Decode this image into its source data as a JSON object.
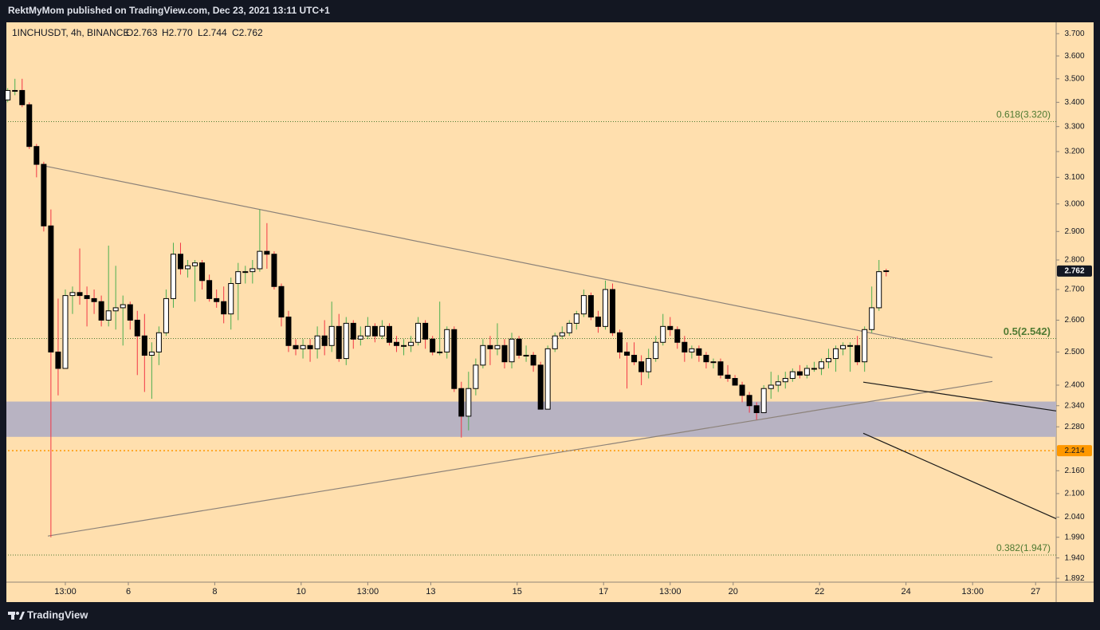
{
  "header": {
    "published": "RektMyMom published on TradingView.com, Dec 23, 2021 13:11 UTC+1",
    "symbol": "1INCHUSDT, 4h, BINANCE",
    "open": "O2.763",
    "high": "H2.770",
    "low": "L2.744",
    "close": "C2.762"
  },
  "footer": {
    "brand": "TradingView"
  },
  "chart_data": {
    "type": "candlestick",
    "log_scale": true,
    "grid": false,
    "up_color": "#ffffff",
    "down_color": "#000000",
    "border_color": "#000000",
    "up_wick": "#4caf50",
    "down_wick": "#f23645",
    "xlim": [
      3.214,
      27.476
    ],
    "ylim": [
      1.883,
      3.752
    ],
    "xticks": [
      {
        "value": 4.542,
        "label": "13:00"
      },
      6,
      8,
      10,
      {
        "value": 11.542,
        "label": "13:00"
      },
      13,
      15,
      17,
      {
        "value": 18.542,
        "label": "13:00"
      },
      20,
      22,
      24,
      {
        "value": 25.542,
        "label": "13:00"
      },
      27
    ],
    "yticks": [
      {
        "value": 3.7,
        "label": "3.700"
      },
      {
        "value": 3.6,
        "label": "3.600"
      },
      {
        "value": 3.5,
        "label": "3.500"
      },
      {
        "value": 3.4,
        "label": "3.400"
      },
      {
        "value": 3.3,
        "label": "3.300"
      },
      {
        "value": 3.2,
        "label": "3.200"
      },
      {
        "value": 3.1,
        "label": "3.100"
      },
      {
        "value": 3.0,
        "label": "3.000"
      },
      {
        "value": 2.9,
        "label": "2.900"
      },
      {
        "value": 2.8,
        "label": "2.800"
      },
      {
        "value": 2.7,
        "label": "2.700"
      },
      {
        "value": 2.6,
        "label": "2.600"
      },
      {
        "value": 2.5,
        "label": "2.500"
      },
      {
        "value": 2.4,
        "label": "2.400"
      },
      {
        "value": 2.34,
        "label": "2.340"
      },
      {
        "value": 2.28,
        "label": "2.280"
      },
      {
        "value": 2.16,
        "label": "2.160"
      },
      {
        "value": 2.1,
        "label": "2.100"
      },
      {
        "value": 2.04,
        "label": "2.040"
      },
      {
        "value": 1.99,
        "label": "1.990"
      },
      {
        "value": 1.94,
        "label": "1.940"
      },
      {
        "value": 1.892,
        "label": "1.892"
      }
    ],
    "level": 2.214,
    "level_color": "#ff9800",
    "fib_color": "#4f7a32",
    "fib_levels": [
      {
        "label": "0.618(3.320)",
        "value": 3.32
      },
      {
        "label": "0.5(2.542)",
        "value": 2.542
      },
      {
        "label": "0.382(1.947)",
        "value": 1.947
      }
    ],
    "zone": {
      "low": 2.252,
      "high": 2.352,
      "color": "#b8b3c2"
    },
    "trendlines": [
      {
        "color": "#8c8279",
        "points": [
          [
            4.081,
            3.143
          ],
          [
            26.0,
            2.483
          ]
        ]
      },
      {
        "color": "#8c8279",
        "points": [
          [
            4.137,
            1.993
          ],
          [
            26.0,
            2.411
          ]
        ]
      },
      {
        "color": "#1a1a1a",
        "points": [
          [
            23.011,
            2.409
          ],
          [
            27.476,
            2.325
          ]
        ]
      },
      {
        "color": "#1a1a1a",
        "points": [
          [
            23.011,
            2.262
          ],
          [
            27.476,
            2.036
          ]
        ]
      }
    ],
    "candles": [
      {
        "x": 3.208,
        "open": 3.41,
        "high": 3.46,
        "low": 3.4,
        "close": 3.45
      },
      {
        "x": 3.375,
        "open": 3.45,
        "high": 3.5,
        "low": 3.43,
        "close": 3.45
      },
      {
        "x": 3.542,
        "open": 3.45,
        "high": 3.5,
        "low": 3.38,
        "close": 3.39
      },
      {
        "x": 3.708,
        "open": 3.39,
        "high": 3.4,
        "low": 3.21,
        "close": 3.22
      },
      {
        "x": 3.875,
        "open": 3.22,
        "high": 3.23,
        "low": 3.1,
        "close": 3.15
      },
      {
        "x": 4.042,
        "open": 3.15,
        "high": 3.16,
        "low": 2.9,
        "close": 2.92
      },
      {
        "x": 4.208,
        "open": 2.92,
        "high": 2.98,
        "low": 1.99,
        "close": 2.5
      },
      {
        "x": 4.375,
        "open": 2.5,
        "high": 2.67,
        "low": 2.37,
        "close": 2.45
      },
      {
        "x": 4.542,
        "open": 2.45,
        "high": 2.7,
        "low": 2.45,
        "close": 2.68
      },
      {
        "x": 4.708,
        "open": 2.68,
        "high": 2.71,
        "low": 2.62,
        "close": 2.69
      },
      {
        "x": 4.875,
        "open": 2.69,
        "high": 2.84,
        "low": 2.65,
        "close": 2.68
      },
      {
        "x": 5.042,
        "open": 2.68,
        "high": 2.71,
        "low": 2.58,
        "close": 2.67
      },
      {
        "x": 5.208,
        "open": 2.67,
        "high": 2.7,
        "low": 2.62,
        "close": 2.66
      },
      {
        "x": 5.375,
        "open": 2.66,
        "high": 2.68,
        "low": 2.58,
        "close": 2.6
      },
      {
        "x": 5.542,
        "open": 2.6,
        "high": 2.85,
        "low": 2.58,
        "close": 2.63
      },
      {
        "x": 5.708,
        "open": 2.63,
        "high": 2.78,
        "low": 2.57,
        "close": 2.64
      },
      {
        "x": 5.875,
        "open": 2.64,
        "high": 2.68,
        "low": 2.52,
        "close": 2.65
      },
      {
        "x": 6.042,
        "open": 2.65,
        "high": 2.66,
        "low": 2.57,
        "close": 2.6
      },
      {
        "x": 6.208,
        "open": 2.6,
        "high": 2.63,
        "low": 2.43,
        "close": 2.55
      },
      {
        "x": 6.375,
        "open": 2.55,
        "high": 2.62,
        "low": 2.38,
        "close": 2.49
      },
      {
        "x": 6.542,
        "open": 2.49,
        "high": 2.53,
        "low": 2.36,
        "close": 2.5
      },
      {
        "x": 6.708,
        "open": 2.5,
        "high": 2.58,
        "low": 2.46,
        "close": 2.56
      },
      {
        "x": 6.875,
        "open": 2.56,
        "high": 2.7,
        "low": 2.55,
        "close": 2.67
      },
      {
        "x": 7.042,
        "open": 2.67,
        "high": 2.86,
        "low": 2.64,
        "close": 2.82
      },
      {
        "x": 7.208,
        "open": 2.82,
        "high": 2.86,
        "low": 2.75,
        "close": 2.77
      },
      {
        "x": 7.375,
        "open": 2.77,
        "high": 2.8,
        "low": 2.74,
        "close": 2.78
      },
      {
        "x": 7.542,
        "open": 2.78,
        "high": 2.8,
        "low": 2.66,
        "close": 2.79
      },
      {
        "x": 7.708,
        "open": 2.79,
        "high": 2.8,
        "low": 2.7,
        "close": 2.73
      },
      {
        "x": 7.875,
        "open": 2.73,
        "high": 2.75,
        "low": 2.66,
        "close": 2.67
      },
      {
        "x": 8.042,
        "open": 2.67,
        "high": 2.7,
        "low": 2.64,
        "close": 2.66
      },
      {
        "x": 8.208,
        "open": 2.66,
        "high": 2.71,
        "low": 2.59,
        "close": 2.62
      },
      {
        "x": 8.375,
        "open": 2.62,
        "high": 2.74,
        "low": 2.57,
        "close": 2.72
      },
      {
        "x": 8.542,
        "open": 2.72,
        "high": 2.79,
        "low": 2.6,
        "close": 2.76
      },
      {
        "x": 8.708,
        "open": 2.76,
        "high": 2.78,
        "low": 2.72,
        "close": 2.76
      },
      {
        "x": 8.875,
        "open": 2.76,
        "high": 2.8,
        "low": 2.72,
        "close": 2.77
      },
      {
        "x": 9.042,
        "open": 2.77,
        "high": 2.98,
        "low": 2.76,
        "close": 2.83
      },
      {
        "x": 9.208,
        "open": 2.83,
        "high": 2.93,
        "low": 2.77,
        "close": 2.82
      },
      {
        "x": 9.375,
        "open": 2.82,
        "high": 2.83,
        "low": 2.7,
        "close": 2.71
      },
      {
        "x": 9.542,
        "open": 2.71,
        "high": 2.72,
        "low": 2.58,
        "close": 2.61
      },
      {
        "x": 9.708,
        "open": 2.61,
        "high": 2.63,
        "low": 2.5,
        "close": 2.52
      },
      {
        "x": 9.875,
        "open": 2.52,
        "high": 2.54,
        "low": 2.49,
        "close": 2.51
      },
      {
        "x": 10.042,
        "open": 2.51,
        "high": 2.54,
        "low": 2.48,
        "close": 2.52
      },
      {
        "x": 10.208,
        "open": 2.52,
        "high": 2.54,
        "low": 2.47,
        "close": 2.51
      },
      {
        "x": 10.375,
        "open": 2.51,
        "high": 2.58,
        "low": 2.48,
        "close": 2.55
      },
      {
        "x": 10.542,
        "open": 2.55,
        "high": 2.6,
        "low": 2.49,
        "close": 2.52
      },
      {
        "x": 10.708,
        "open": 2.52,
        "high": 2.66,
        "low": 2.5,
        "close": 2.58
      },
      {
        "x": 10.875,
        "open": 2.58,
        "high": 2.62,
        "low": 2.47,
        "close": 2.48
      },
      {
        "x": 11.042,
        "open": 2.48,
        "high": 2.61,
        "low": 2.46,
        "close": 2.59
      },
      {
        "x": 11.208,
        "open": 2.59,
        "high": 2.6,
        "low": 2.51,
        "close": 2.54
      },
      {
        "x": 11.375,
        "open": 2.54,
        "high": 2.58,
        "low": 2.52,
        "close": 2.55
      },
      {
        "x": 11.542,
        "open": 2.55,
        "high": 2.61,
        "low": 2.54,
        "close": 2.58
      },
      {
        "x": 11.708,
        "open": 2.58,
        "high": 2.59,
        "low": 2.53,
        "close": 2.55
      },
      {
        "x": 11.875,
        "open": 2.55,
        "high": 2.6,
        "low": 2.54,
        "close": 2.58
      },
      {
        "x": 12.042,
        "open": 2.58,
        "high": 2.59,
        "low": 2.52,
        "close": 2.53
      },
      {
        "x": 12.208,
        "open": 2.53,
        "high": 2.55,
        "low": 2.5,
        "close": 2.52
      },
      {
        "x": 12.375,
        "open": 2.52,
        "high": 2.54,
        "low": 2.49,
        "close": 2.52
      },
      {
        "x": 12.542,
        "open": 2.52,
        "high": 2.55,
        "low": 2.5,
        "close": 2.53
      },
      {
        "x": 12.708,
        "open": 2.53,
        "high": 2.61,
        "low": 2.52,
        "close": 2.59
      },
      {
        "x": 12.875,
        "open": 2.59,
        "high": 2.6,
        "low": 2.51,
        "close": 2.54
      },
      {
        "x": 13.042,
        "open": 2.54,
        "high": 2.55,
        "low": 2.49,
        "close": 2.5
      },
      {
        "x": 13.208,
        "open": 2.5,
        "high": 2.66,
        "low": 2.49,
        "close": 2.5
      },
      {
        "x": 13.375,
        "open": 2.5,
        "high": 2.58,
        "low": 2.48,
        "close": 2.57
      },
      {
        "x": 13.542,
        "open": 2.57,
        "high": 2.58,
        "low": 2.38,
        "close": 2.39
      },
      {
        "x": 13.708,
        "open": 2.39,
        "high": 2.41,
        "low": 2.25,
        "close": 2.31
      },
      {
        "x": 13.875,
        "open": 2.31,
        "high": 2.44,
        "low": 2.27,
        "close": 2.39
      },
      {
        "x": 14.042,
        "open": 2.39,
        "high": 2.48,
        "low": 2.37,
        "close": 2.46
      },
      {
        "x": 14.208,
        "open": 2.46,
        "high": 2.54,
        "low": 2.45,
        "close": 2.52
      },
      {
        "x": 14.375,
        "open": 2.52,
        "high": 2.55,
        "low": 2.46,
        "close": 2.51
      },
      {
        "x": 14.542,
        "open": 2.51,
        "high": 2.59,
        "low": 2.49,
        "close": 2.52
      },
      {
        "x": 14.708,
        "open": 2.52,
        "high": 2.54,
        "low": 2.45,
        "close": 2.47
      },
      {
        "x": 14.875,
        "open": 2.47,
        "high": 2.56,
        "low": 2.45,
        "close": 2.54
      },
      {
        "x": 15.042,
        "open": 2.54,
        "high": 2.55,
        "low": 2.48,
        "close": 2.49
      },
      {
        "x": 15.208,
        "open": 2.49,
        "high": 2.52,
        "low": 2.47,
        "close": 2.49
      },
      {
        "x": 15.375,
        "open": 2.49,
        "high": 2.5,
        "low": 2.44,
        "close": 2.46
      },
      {
        "x": 15.542,
        "open": 2.46,
        "high": 2.47,
        "low": 2.33,
        "close": 2.33
      },
      {
        "x": 15.708,
        "open": 2.33,
        "high": 2.52,
        "low": 2.33,
        "close": 2.51
      },
      {
        "x": 15.875,
        "open": 2.51,
        "high": 2.56,
        "low": 2.5,
        "close": 2.55
      },
      {
        "x": 16.042,
        "open": 2.55,
        "high": 2.58,
        "low": 2.54,
        "close": 2.56
      },
      {
        "x": 16.208,
        "open": 2.56,
        "high": 2.6,
        "low": 2.55,
        "close": 2.59
      },
      {
        "x": 16.375,
        "open": 2.59,
        "high": 2.63,
        "low": 2.57,
        "close": 2.62
      },
      {
        "x": 16.542,
        "open": 2.62,
        "high": 2.7,
        "low": 2.61,
        "close": 2.68
      },
      {
        "x": 16.708,
        "open": 2.68,
        "high": 2.69,
        "low": 2.6,
        "close": 2.61
      },
      {
        "x": 16.875,
        "open": 2.61,
        "high": 2.63,
        "low": 2.56,
        "close": 2.58
      },
      {
        "x": 17.042,
        "open": 2.58,
        "high": 2.73,
        "low": 2.57,
        "close": 2.7
      },
      {
        "x": 17.208,
        "open": 2.7,
        "high": 2.72,
        "low": 2.55,
        "close": 2.56
      },
      {
        "x": 17.375,
        "open": 2.56,
        "high": 2.57,
        "low": 2.48,
        "close": 2.5
      },
      {
        "x": 17.542,
        "open": 2.5,
        "high": 2.53,
        "low": 2.39,
        "close": 2.49
      },
      {
        "x": 17.708,
        "open": 2.49,
        "high": 2.53,
        "low": 2.46,
        "close": 2.47
      },
      {
        "x": 17.875,
        "open": 2.47,
        "high": 2.49,
        "low": 2.4,
        "close": 2.44
      },
      {
        "x": 18.042,
        "open": 2.44,
        "high": 2.51,
        "low": 2.42,
        "close": 2.48
      },
      {
        "x": 18.208,
        "open": 2.48,
        "high": 2.55,
        "low": 2.47,
        "close": 2.53
      },
      {
        "x": 18.375,
        "open": 2.53,
        "high": 2.62,
        "low": 2.52,
        "close": 2.58
      },
      {
        "x": 18.542,
        "open": 2.58,
        "high": 2.61,
        "low": 2.55,
        "close": 2.57
      },
      {
        "x": 18.708,
        "open": 2.57,
        "high": 2.58,
        "low": 2.51,
        "close": 2.53
      },
      {
        "x": 18.875,
        "open": 2.53,
        "high": 2.55,
        "low": 2.47,
        "close": 2.5
      },
      {
        "x": 19.042,
        "open": 2.5,
        "high": 2.52,
        "low": 2.48,
        "close": 2.51
      },
      {
        "x": 19.208,
        "open": 2.51,
        "high": 2.52,
        "low": 2.47,
        "close": 2.49
      },
      {
        "x": 19.375,
        "open": 2.49,
        "high": 2.5,
        "low": 2.45,
        "close": 2.47
      },
      {
        "x": 19.542,
        "open": 2.47,
        "high": 2.48,
        "low": 2.45,
        "close": 2.47
      },
      {
        "x": 19.708,
        "open": 2.47,
        "high": 2.48,
        "low": 2.42,
        "close": 2.43
      },
      {
        "x": 19.875,
        "open": 2.43,
        "high": 2.46,
        "low": 2.41,
        "close": 2.42
      },
      {
        "x": 20.042,
        "open": 2.42,
        "high": 2.43,
        "low": 2.4,
        "close": 2.4
      },
      {
        "x": 20.208,
        "open": 2.4,
        "high": 2.41,
        "low": 2.35,
        "close": 2.37
      },
      {
        "x": 20.375,
        "open": 2.37,
        "high": 2.38,
        "low": 2.32,
        "close": 2.34
      },
      {
        "x": 20.542,
        "open": 2.34,
        "high": 2.35,
        "low": 2.3,
        "close": 2.32
      },
      {
        "x": 20.708,
        "open": 2.32,
        "high": 2.4,
        "low": 2.32,
        "close": 2.39
      },
      {
        "x": 20.875,
        "open": 2.39,
        "high": 2.44,
        "low": 2.36,
        "close": 2.4
      },
      {
        "x": 21.042,
        "open": 2.4,
        "high": 2.43,
        "low": 2.38,
        "close": 2.41
      },
      {
        "x": 21.208,
        "open": 2.41,
        "high": 2.44,
        "low": 2.39,
        "close": 2.42
      },
      {
        "x": 21.375,
        "open": 2.42,
        "high": 2.45,
        "low": 2.41,
        "close": 2.44
      },
      {
        "x": 21.542,
        "open": 2.44,
        "high": 2.46,
        "low": 2.42,
        "close": 2.43
      },
      {
        "x": 21.708,
        "open": 2.43,
        "high": 2.46,
        "low": 2.42,
        "close": 2.45
      },
      {
        "x": 21.875,
        "open": 2.45,
        "high": 2.47,
        "low": 2.44,
        "close": 2.45
      },
      {
        "x": 22.042,
        "open": 2.45,
        "high": 2.48,
        "low": 2.43,
        "close": 2.47
      },
      {
        "x": 22.208,
        "open": 2.47,
        "high": 2.51,
        "low": 2.45,
        "close": 2.48
      },
      {
        "x": 22.375,
        "open": 2.48,
        "high": 2.52,
        "low": 2.44,
        "close": 2.51
      },
      {
        "x": 22.542,
        "open": 2.51,
        "high": 2.53,
        "low": 2.49,
        "close": 2.52
      },
      {
        "x": 22.708,
        "open": 2.52,
        "high": 2.53,
        "low": 2.44,
        "close": 2.52
      },
      {
        "x": 22.875,
        "open": 2.52,
        "high": 2.55,
        "low": 2.46,
        "close": 2.47
      },
      {
        "x": 23.042,
        "open": 2.47,
        "high": 2.58,
        "low": 2.44,
        "close": 2.57
      },
      {
        "x": 23.208,
        "open": 2.57,
        "high": 2.71,
        "low": 2.56,
        "close": 2.64
      },
      {
        "x": 23.375,
        "open": 2.64,
        "high": 2.8,
        "low": 2.63,
        "close": 2.76
      },
      {
        "x": 23.542,
        "open": 2.763,
        "high": 2.77,
        "low": 2.744,
        "close": 2.762
      }
    ]
  }
}
